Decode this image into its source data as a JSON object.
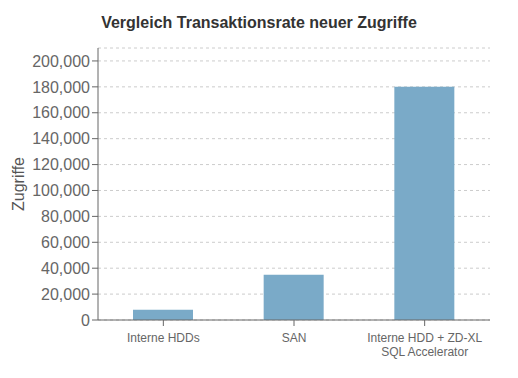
{
  "chart_data": {
    "type": "bar",
    "title": "Vergleich Transaktionsrate neuer Zugriffe",
    "y_label": "Zugriffe",
    "categories": [
      "Interne HDDs",
      "SAN",
      "Interne HDD + ZD-XL\nSQL Accelerator"
    ],
    "values": [
      8000,
      35000,
      180000
    ],
    "color": "#7aaac8",
    "ylim": [
      0,
      210000
    ],
    "yticks": [
      0,
      {
        "value": 20000,
        "label": "20,000"
      },
      {
        "value": 40000,
        "label": "40,000"
      },
      {
        "value": 60000,
        "label": "60,000"
      },
      {
        "value": 80000,
        "label": "80,000"
      },
      {
        "value": 100000,
        "label": "100,000"
      },
      {
        "value": 120000,
        "label": "120,000"
      },
      {
        "value": 140000,
        "label": "140,000"
      },
      {
        "value": 160000,
        "label": "160,000"
      },
      {
        "value": 180000,
        "label": "180,000"
      },
      {
        "value": 200000,
        "label": "200,000"
      }
    ],
    "grid": true
  }
}
